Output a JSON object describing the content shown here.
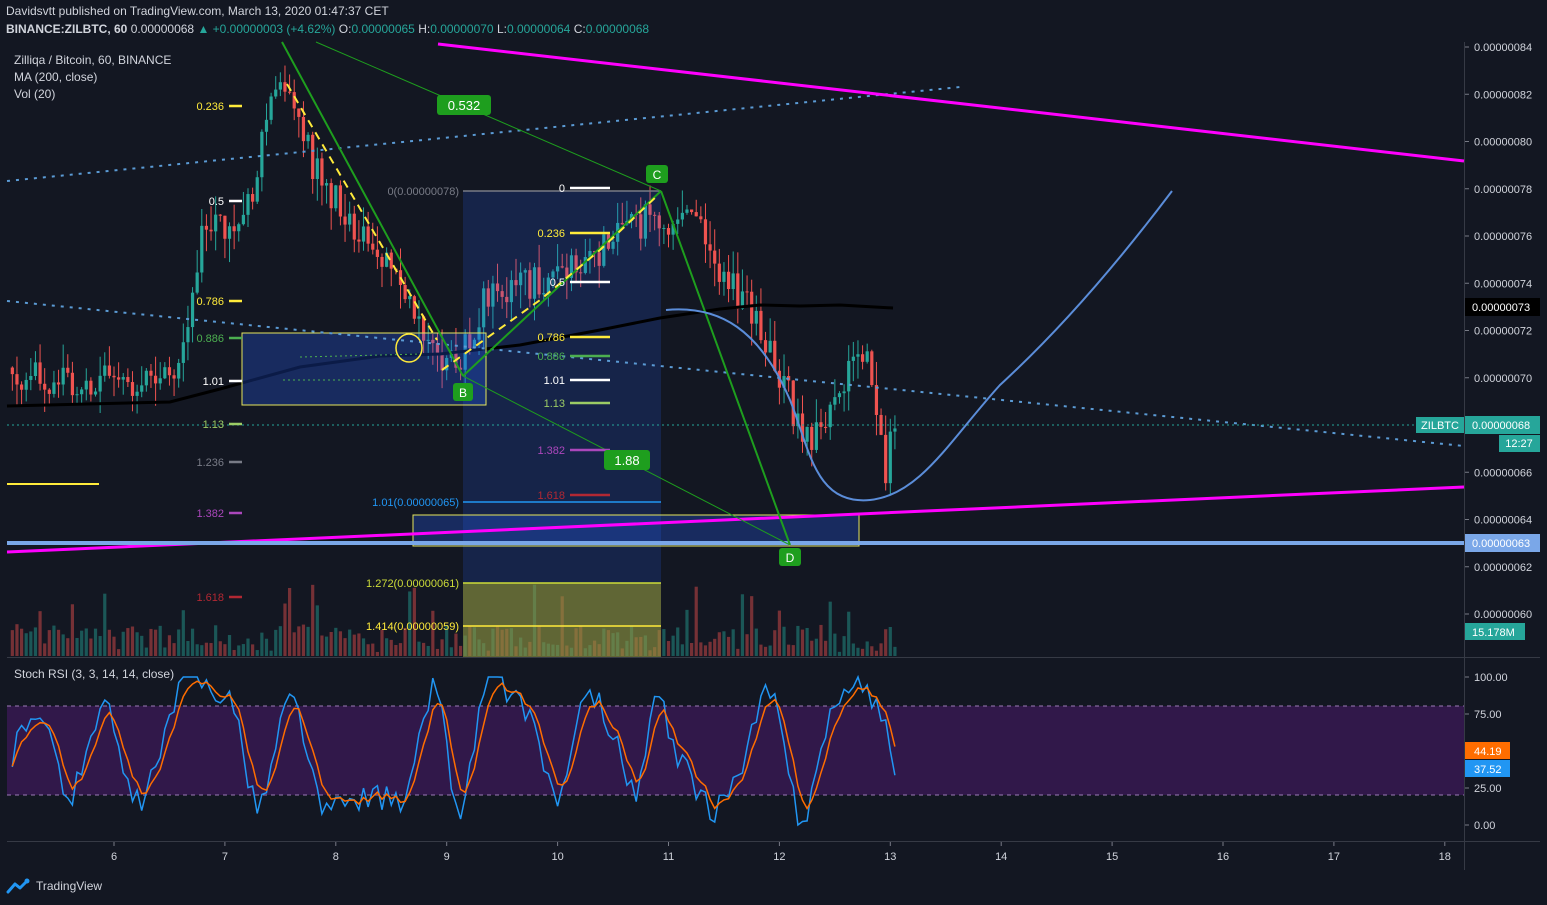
{
  "header": {
    "publisher": "Davidsvtt published on TradingView.com, March 13, 2020 01:47:37 CET",
    "symbol": "BINANCE:ZILBTC, 60",
    "last": "0.00000068",
    "change": "▲ +0.00000003 (+4.62%)",
    "ohlc_o_label": "O:",
    "ohlc_o": "0.00000065",
    "ohlc_h_label": "H:",
    "ohlc_h": "0.00000070",
    "ohlc_l_label": "L:",
    "ohlc_l": "0.00000064",
    "ohlc_c_label": "C:",
    "ohlc_c": "0.00000068"
  },
  "legend": {
    "pair": "Zilliqa / Bitcoin, 60, BINANCE",
    "ma": "MA (200, close)",
    "vol": "Vol (20)",
    "stoch": "Stoch RSI (3, 3, 14, 14, close)"
  },
  "footer": {
    "brand": "TradingView"
  },
  "colors": {
    "background": "#131722",
    "up": "#26a69a",
    "down": "#ef5350",
    "trendline": "#ff00ff",
    "pattern": "#1e9e1e",
    "stoch_k": "#2196f3",
    "stoch_d": "#ff6d00",
    "stoch_band": "#4a1a6b"
  },
  "chart_data": {
    "type": "candlestick",
    "x_ticks": [
      "6",
      "7",
      "8",
      "9",
      "10",
      "11",
      "12",
      "13",
      "14",
      "15",
      "16",
      "17",
      "18"
    ],
    "y_ticks": [
      "0.00000084",
      "0.00000082",
      "0.00000080",
      "0.00000078",
      "0.00000076",
      "0.00000074",
      "0.00000072",
      "0.00000070",
      "0.00000066",
      "0.00000064",
      "0.00000062",
      "0.00000060"
    ],
    "ylim": [
      5.87e-07,
      8.45e-07
    ],
    "tags": {
      "ma_value": "0.00000073",
      "symbol_tag": "ZILBTC",
      "last_price": "0.00000068",
      "countdown": "12:27",
      "support_price": "0.00000063",
      "volume": "15.178M"
    },
    "harmonic": {
      "points": [
        {
          "label": "B",
          "date": 9.12,
          "price": 7e-07
        },
        {
          "label": "C",
          "date": 10.92,
          "price": 7.8e-07
        },
        {
          "label": "D",
          "date": 12.12,
          "price": 6.32e-07
        }
      ],
      "ratios": [
        "0.532",
        "1.88"
      ]
    },
    "fib_left": [
      {
        "label": "0.236",
        "color": "#ffeb3b"
      },
      {
        "label": "0.5",
        "color": "#ffffff"
      },
      {
        "label": "0.786",
        "color": "#ffeb3b"
      },
      {
        "label": "0.886",
        "color": "#4caf50"
      },
      {
        "label": "1.01",
        "color": "#ffffff"
      },
      {
        "label": "1.13",
        "color": "#9ccc65"
      },
      {
        "label": "1.236",
        "color": "#787b86"
      },
      {
        "label": "1.382",
        "color": "#ab47bc"
      },
      {
        "label": "1.618",
        "color": "#b22833"
      }
    ],
    "fib_mid": [
      {
        "label": "0",
        "color": "#ffffff"
      },
      {
        "label": "0.236",
        "color": "#ffeb3b"
      },
      {
        "label": "0.5",
        "color": "#ffffff"
      },
      {
        "label": "0.786",
        "color": "#ffeb3b"
      },
      {
        "label": "0.886",
        "color": "#4caf50"
      },
      {
        "label": "1.01",
        "color": "#ffffff"
      },
      {
        "label": "1.13",
        "color": "#9ccc65"
      },
      {
        "label": "1.382",
        "color": "#ab47bc"
      },
      {
        "label": "1.618",
        "color": "#b22833"
      }
    ],
    "fib_ext": [
      {
        "label": "0(0.00000078)",
        "color": "#787b86"
      },
      {
        "label": "1.01(0.00000065)",
        "color": "#2196f3"
      },
      {
        "label": "1.272(0.00000061)",
        "color": "#cddc39"
      },
      {
        "label": "1.414(0.00000059)",
        "color": "#ffeb3b"
      }
    ],
    "stoch_rsi": {
      "y_ticks": [
        "100.00",
        "75.00",
        "25.00",
        "0.00"
      ],
      "band": [
        20,
        80
      ],
      "k_value": "37.52",
      "d_value": "44.19"
    }
  }
}
